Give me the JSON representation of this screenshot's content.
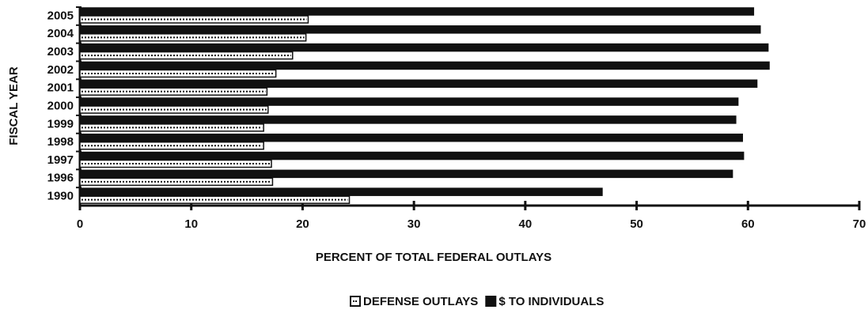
{
  "chart_data": {
    "type": "barh",
    "xlabel": "PERCENT OF TOTAL FEDERAL OUTLAYS",
    "ylabel": "FISCAL YEAR",
    "categories": [
      "2005",
      "2004",
      "2003",
      "2002",
      "2001",
      "2000",
      "1999",
      "1998",
      "1997",
      "1996",
      "1990"
    ],
    "series": [
      {
        "name": "DEFENSE OUTLAYS",
        "color": "#ffffff",
        "values": [
          20.5,
          20.3,
          19.1,
          17.6,
          16.8,
          16.9,
          16.5,
          16.5,
          17.2,
          17.3,
          24.2
        ]
      },
      {
        "name": "$ TO INDIVIDUALS",
        "color": "#111111",
        "values": [
          60.5,
          61.1,
          61.8,
          61.9,
          60.8,
          59.1,
          58.9,
          59.5,
          59.6,
          58.6,
          46.9
        ]
      }
    ],
    "xlim": [
      0,
      70
    ],
    "xticks": [
      0,
      10,
      20,
      30,
      40,
      50,
      60,
      70
    ]
  }
}
